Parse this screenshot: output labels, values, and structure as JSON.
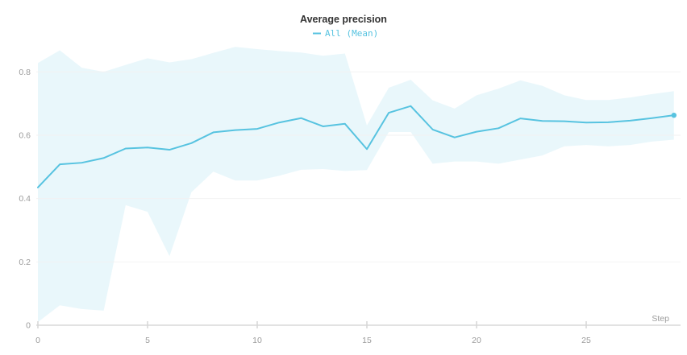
{
  "header": {
    "title": "Average precision",
    "legend": {
      "marker": "dash",
      "label": "All (Mean)"
    }
  },
  "axes": {
    "x_label": "Step",
    "x_tick_labels": [
      "0",
      "5",
      "10",
      "15",
      "20",
      "25"
    ],
    "x_tick_values": [
      0,
      5,
      10,
      15,
      20,
      25
    ],
    "y_tick_labels": [
      "0",
      "0.2",
      "0.4",
      "0.6",
      "0.8"
    ],
    "y_tick_values": [
      0,
      0.2,
      0.4,
      0.6,
      0.8
    ]
  },
  "chart_data": {
    "type": "line",
    "title": "Average precision",
    "xlabel": "Step",
    "ylabel": "",
    "xlim": [
      0,
      29
    ],
    "ylim": [
      0,
      0.88
    ],
    "grid": true,
    "legend_position": "top-center",
    "series": [
      {
        "name": "All (Mean)",
        "x": [
          0,
          1,
          2,
          3,
          4,
          5,
          6,
          7,
          8,
          9,
          10,
          11,
          12,
          13,
          14,
          15,
          16,
          17,
          18,
          19,
          20,
          21,
          22,
          23,
          24,
          25,
          26,
          27,
          28,
          29
        ],
        "y": [
          0.435,
          0.508,
          0.513,
          0.528,
          0.558,
          0.561,
          0.554,
          0.575,
          0.609,
          0.616,
          0.62,
          0.64,
          0.654,
          0.628,
          0.636,
          0.556,
          0.671,
          0.692,
          0.618,
          0.593,
          0.611,
          0.622,
          0.653,
          0.645,
          0.644,
          0.64,
          0.641,
          0.646,
          0.654,
          0.663
        ],
        "band_upper": [
          0.828,
          0.868,
          0.813,
          0.8,
          0.822,
          0.843,
          0.83,
          0.84,
          0.86,
          0.879,
          0.872,
          0.866,
          0.861,
          0.851,
          0.858,
          0.631,
          0.75,
          0.775,
          0.71,
          0.684,
          0.726,
          0.747,
          0.773,
          0.756,
          0.726,
          0.711,
          0.711,
          0.719,
          0.73,
          0.739
        ],
        "band_lower": [
          0.01,
          0.063,
          0.051,
          0.046,
          0.379,
          0.358,
          0.218,
          0.42,
          0.485,
          0.457,
          0.457,
          0.472,
          0.491,
          0.493,
          0.487,
          0.49,
          0.61,
          0.61,
          0.51,
          0.517,
          0.517,
          0.51,
          0.523,
          0.536,
          0.565,
          0.569,
          0.565,
          0.569,
          0.58,
          0.586
        ],
        "end_marker": true
      }
    ],
    "colors": {
      "line": "#57c3e0",
      "band_fill": "#57c3e0",
      "band_opacity": 0.13,
      "title_text": "#333333",
      "legend_text": "#57c3e0",
      "tick_text": "#9b9b9b",
      "gridline": "#f2f2f2",
      "axis_line": "#e2e2e2",
      "tick_mark": "#d6d6d6"
    }
  }
}
